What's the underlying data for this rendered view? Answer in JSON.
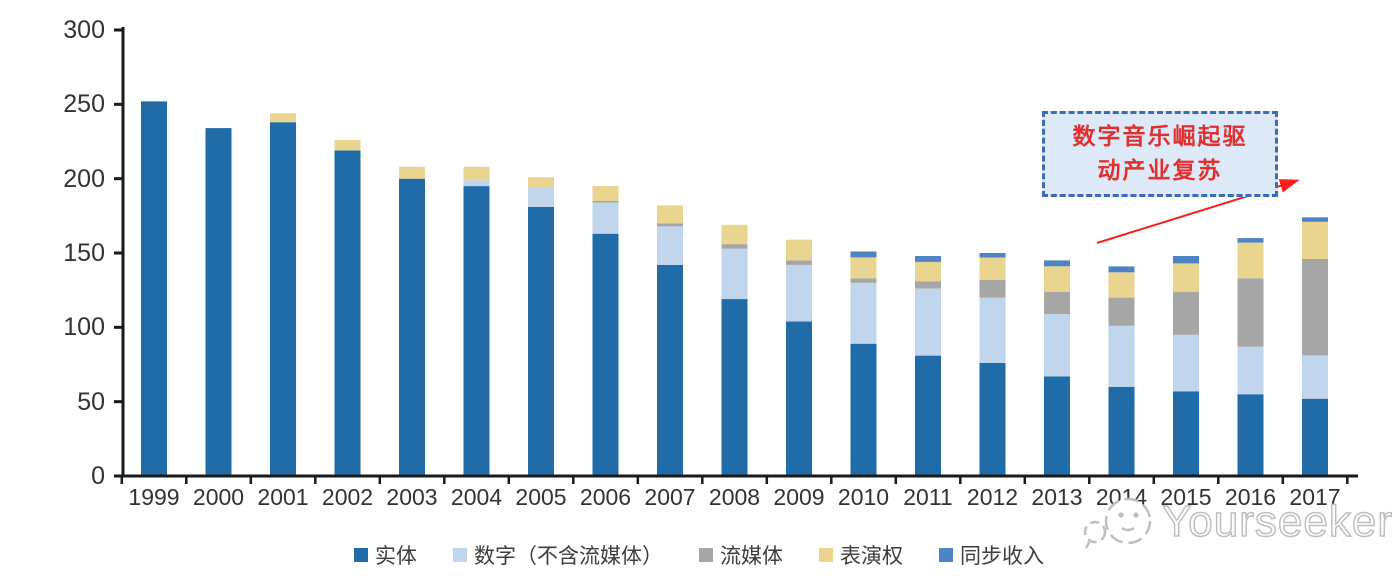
{
  "chart_data": {
    "type": "bar",
    "stacked": true,
    "title": "",
    "xlabel": "",
    "ylabel": "",
    "categories": [
      "1999",
      "2000",
      "2001",
      "2002",
      "2003",
      "2004",
      "2005",
      "2006",
      "2007",
      "2008",
      "2009",
      "2010",
      "2011",
      "2012",
      "2013",
      "2014",
      "2015",
      "2016",
      "2017"
    ],
    "series": [
      {
        "name": "实体",
        "color": "#1f6ca8",
        "values": [
          252,
          234,
          238,
          219,
          200,
          195,
          181,
          163,
          142,
          119,
          104,
          89,
          81,
          76,
          67,
          60,
          57,
          55,
          52
        ]
      },
      {
        "name": "数字（不含流媒体）",
        "color": "#c1d6ec",
        "values": [
          0,
          0,
          0,
          0,
          0,
          4,
          13,
          21,
          26,
          34,
          38,
          41,
          45,
          44,
          42,
          41,
          38,
          32,
          29
        ]
      },
      {
        "name": "流媒体",
        "color": "#a6a6a6",
        "values": [
          0,
          0,
          0,
          0,
          0,
          0,
          0,
          1,
          2,
          3,
          3,
          3,
          5,
          12,
          15,
          19,
          29,
          46,
          65
        ]
      },
      {
        "name": "表演权",
        "color": "#e9d58f",
        "values": [
          0,
          0,
          6,
          7,
          8,
          9,
          7,
          10,
          12,
          13,
          14,
          14,
          13,
          15,
          17,
          17,
          19,
          24,
          25
        ]
      },
      {
        "name": "同步收入",
        "color": "#4e84c4",
        "values": [
          0,
          0,
          0,
          0,
          0,
          0,
          0,
          0,
          0,
          0,
          0,
          4,
          4,
          3,
          4,
          4,
          5,
          3,
          3
        ]
      }
    ],
    "ylim": [
      0,
      300
    ],
    "yticks": [
      0,
      50,
      100,
      150,
      200,
      250,
      300
    ],
    "grid": false,
    "legend_position": "bottom"
  },
  "annotation": {
    "line1": "数字音乐崛起驱",
    "line2": "动产业复苏",
    "text_color": "#e03131",
    "box_fill": "#dde9f6",
    "box_border": "#3a6db5",
    "arrow_color": "#fb2020"
  },
  "watermark": {
    "text": "Yourseeker"
  }
}
